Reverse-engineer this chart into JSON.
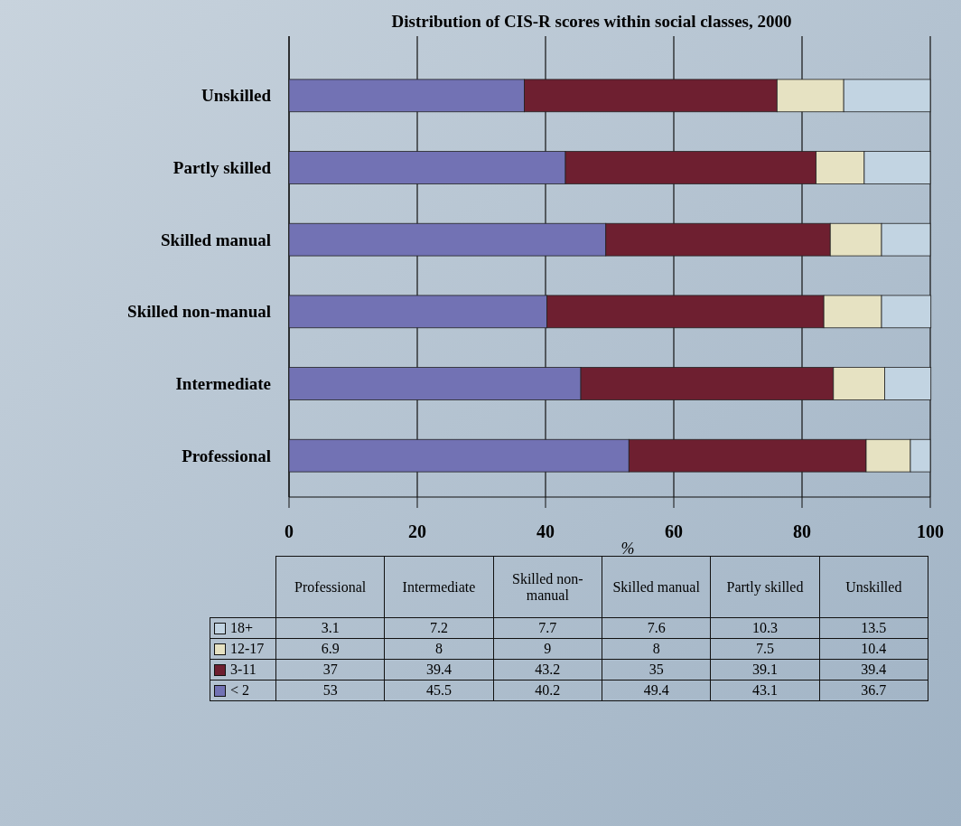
{
  "chart_data": [
    {
      "type": "bar",
      "orientation": "horizontal",
      "stacked": true,
      "title": "Distribution of CIS-R scores within social classes, 2000",
      "xlabel": "%",
      "categories": [
        "Unskilled",
        "Partly skilled",
        "Skilled manual",
        "Skilled non-manual",
        "Intermediate",
        "Professional"
      ],
      "series": [
        {
          "color": "#7272b4",
          "values": [
            36.7,
            43.1,
            49.4,
            40.2,
            45.5,
            53
          ]
        },
        {
          "color": "#6e1f30",
          "values": [
            39.4,
            39.1,
            35,
            43.2,
            39.4,
            37
          ]
        },
        {
          "color": "#e6e2c2",
          "values": [
            10.4,
            7.5,
            8,
            9,
            8,
            6.9
          ]
        },
        {
          "color": "#c2d4e2",
          "values": [
            13.5,
            10.3,
            7.6,
            7.7,
            7.2,
            3.1
          ]
        }
      ],
      "xlim": [
        0,
        100
      ],
      "xticks": [
        0,
        20,
        40,
        60,
        80,
        100
      ],
      "grid": "x"
    },
    {
      "type": "other",
      "legend": "left",
      "categories": [
        "Professional",
        "Intermediate",
        "Skilled non-manual",
        "Skilled manual",
        "Partly skilled",
        "Unskilled"
      ],
      "series": [
        {
          "name": "18+",
          "color": "#c2d4e2",
          "values": [
            3.1,
            7.2,
            7.7,
            7.6,
            10.3,
            13.5
          ],
          "value_labels": [
            "3.1",
            "7.2",
            "7.7",
            "7.6",
            "10.3",
            "13.5"
          ]
        },
        {
          "name": "12-17",
          "color": "#e6e2c2",
          "values": [
            6.9,
            8,
            9,
            8,
            7.5,
            10.4
          ],
          "value_labels": [
            "6.9",
            "8",
            "9",
            "8",
            "7.5",
            "10.4"
          ]
        },
        {
          "name": "3-11",
          "color": "#6e1f30",
          "values": [
            37,
            39.4,
            43.2,
            35,
            39.1,
            39.4
          ],
          "value_labels": [
            "37",
            "39.4",
            "43.2",
            "35",
            "39.1",
            "39.4"
          ]
        },
        {
          "name": "< 2",
          "color": "#7272b4",
          "values": [
            53,
            45.5,
            40.2,
            49.4,
            43.1,
            36.7
          ],
          "value_labels": [
            "53",
            "45.5",
            "40.2",
            "49.4",
            "43.1",
            "36.7"
          ]
        }
      ]
    }
  ]
}
